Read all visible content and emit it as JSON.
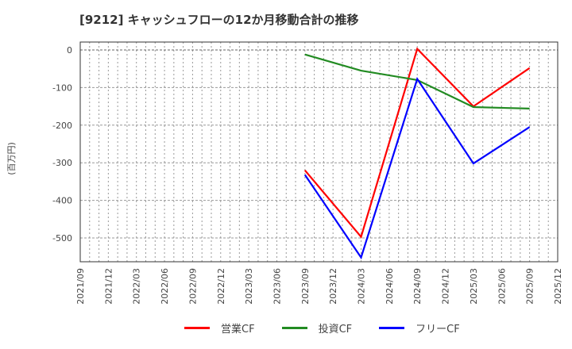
{
  "title": "[9212]  キャッシュフローの12か月移動合計の推移",
  "chart_data": {
    "type": "line",
    "title": "[9212]  キャッシュフローの12か月移動合計の推移",
    "xlabel": "",
    "ylabel": "(百万円)",
    "ylim": [
      -560,
      20
    ],
    "yticks": [
      0,
      -100,
      -200,
      -300,
      -400,
      -500
    ],
    "grid": true,
    "legend_position": "bottom",
    "x_tick_labels": [
      "2021/09",
      "2021/12",
      "2022/03",
      "2022/06",
      "2022/09",
      "2022/12",
      "2023/03",
      "2023/06",
      "2023/09",
      "2023/12",
      "2024/03",
      "2024/06",
      "2024/09",
      "2024/12",
      "2025/03",
      "2025/06",
      "2025/09",
      "2025/12"
    ],
    "x": [
      "2023/09",
      "2024/03",
      "2024/09",
      "2025/03",
      "2025/09"
    ],
    "series": [
      {
        "name": "営業CF",
        "color": "#ff0000",
        "values": [
          -320,
          -497,
          3,
          -150,
          -48
        ]
      },
      {
        "name": "投資CF",
        "color": "#228b22",
        "values": [
          -12,
          -55,
          -80,
          -152,
          -156
        ]
      },
      {
        "name": "フリーCF",
        "color": "#0000ff",
        "values": [
          -332,
          -552,
          -77,
          -302,
          -205
        ]
      }
    ]
  },
  "legend": [
    {
      "label": "営業CF",
      "color": "#ff0000"
    },
    {
      "label": "投資CF",
      "color": "#228b22"
    },
    {
      "label": "フリーCF",
      "color": "#0000ff"
    }
  ]
}
